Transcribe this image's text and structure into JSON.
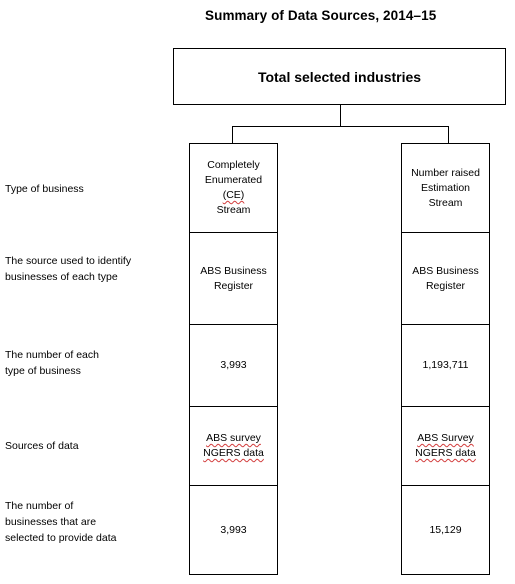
{
  "title": "Summary of Data Sources, 2014–15",
  "root": {
    "label": "Total selected industries"
  },
  "row_labels": [
    "Type of business",
    "The source used to identify businesses of each type",
    "The number of each type of business",
    "Sources of data",
    "The number of businesses that are selected to provide data"
  ],
  "columns": [
    {
      "type_of_business": [
        "Completely",
        "Enumerated",
        "(CE)",
        "Stream"
      ],
      "source": [
        "ABS Business",
        "Register"
      ],
      "number_of_type": "3,993",
      "sources_of_data": [
        "ABS survey",
        "NGERS data"
      ],
      "number_selected": "3,993"
    },
    {
      "type_of_business": [
        "Number raised",
        "Estimation",
        "Stream"
      ],
      "source": [
        "ABS Business",
        "Register"
      ],
      "number_of_type": "1,193,711",
      "sources_of_data": [
        "ABS Survey",
        "NGERS data"
      ],
      "number_selected": "15,129"
    }
  ]
}
